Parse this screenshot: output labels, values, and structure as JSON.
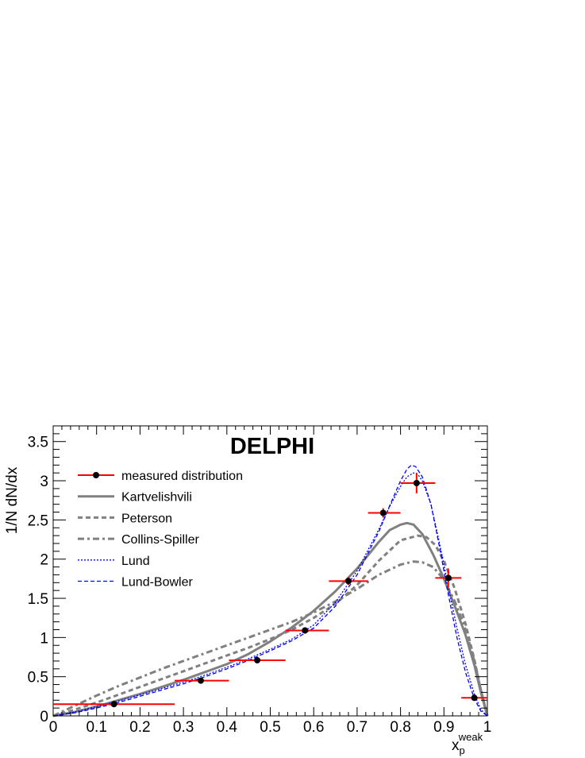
{
  "chart_data": {
    "type": "line",
    "title": "DELPHI",
    "xlabel": "x",
    "xlabel_sub": "p",
    "xlabel_sup": "weak",
    "ylabel": "1/N dN/dx",
    "xlim": [
      0,
      1
    ],
    "ylim": [
      0,
      3.7
    ],
    "x_ticks": [
      "0",
      "0.1",
      "0.2",
      "0.3",
      "0.4",
      "0.5",
      "0.6",
      "0.7",
      "0.8",
      "0.9",
      "1"
    ],
    "y_ticks": [
      "0",
      "0.5",
      "1",
      "1.5",
      "2",
      "2.5",
      "3",
      "3.5"
    ],
    "x_tick_values": [
      0,
      0.1,
      0.2,
      0.3,
      0.4,
      0.5,
      0.6,
      0.7,
      0.8,
      0.9,
      1.0
    ],
    "y_tick_values": [
      0,
      0.5,
      1.0,
      1.5,
      2.0,
      2.5,
      3.0,
      3.5
    ],
    "grid": false,
    "legend_position": "top-left",
    "measured": {
      "name": "measured distribution",
      "color": "#ff0000",
      "marker_color": "#000000",
      "points": [
        {
          "x": 0.14,
          "y": 0.15,
          "xlo": 0.0,
          "xhi": 0.28,
          "yerr": 0.02
        },
        {
          "x": 0.34,
          "y": 0.45,
          "xlo": 0.28,
          "xhi": 0.405,
          "yerr": 0.02
        },
        {
          "x": 0.47,
          "y": 0.71,
          "xlo": 0.405,
          "xhi": 0.535,
          "yerr": 0.03
        },
        {
          "x": 0.58,
          "y": 1.09,
          "xlo": 0.535,
          "xhi": 0.635,
          "yerr": 0.04
        },
        {
          "x": 0.68,
          "y": 1.72,
          "xlo": 0.635,
          "xhi": 0.725,
          "yerr": 0.05
        },
        {
          "x": 0.76,
          "y": 2.59,
          "xlo": 0.725,
          "xhi": 0.8,
          "yerr": 0.06
        },
        {
          "x": 0.837,
          "y": 2.97,
          "xlo": 0.8,
          "xhi": 0.88,
          "yerr": 0.13
        },
        {
          "x": 0.91,
          "y": 1.76,
          "xlo": 0.88,
          "xhi": 0.94,
          "yerr": 0.12
        },
        {
          "x": 0.97,
          "y": 0.23,
          "xlo": 0.94,
          "xhi": 1.0,
          "yerr": 0.03
        }
      ]
    },
    "series": [
      {
        "name": "Kartvelishvili",
        "color": "#808080",
        "style": "solid",
        "x": [
          0.0,
          0.05,
          0.1,
          0.15,
          0.2,
          0.25,
          0.3,
          0.35,
          0.4,
          0.45,
          0.5,
          0.55,
          0.6,
          0.65,
          0.7,
          0.725,
          0.75,
          0.775,
          0.8,
          0.815,
          0.83,
          0.85,
          0.875,
          0.9,
          0.925,
          0.95,
          0.97,
          0.985,
          1.0
        ],
        "values": [
          0.0,
          0.05,
          0.12,
          0.2,
          0.28,
          0.37,
          0.46,
          0.56,
          0.66,
          0.79,
          0.95,
          1.13,
          1.34,
          1.59,
          1.88,
          2.05,
          2.22,
          2.37,
          2.44,
          2.46,
          2.44,
          2.32,
          2.06,
          1.75,
          1.4,
          1.03,
          0.65,
          0.3,
          0.0
        ]
      },
      {
        "name": "Peterson",
        "color": "#808080",
        "style": "dashed",
        "x": [
          0.0,
          0.05,
          0.1,
          0.15,
          0.2,
          0.25,
          0.3,
          0.35,
          0.4,
          0.45,
          0.5,
          0.55,
          0.6,
          0.65,
          0.7,
          0.75,
          0.8,
          0.84,
          0.86,
          0.88,
          0.9,
          0.925,
          0.95,
          0.97,
          0.985,
          1.0
        ],
        "values": [
          0.0,
          0.08,
          0.17,
          0.27,
          0.37,
          0.47,
          0.57,
          0.67,
          0.77,
          0.87,
          0.98,
          1.1,
          1.25,
          1.43,
          1.67,
          1.98,
          2.24,
          2.3,
          2.28,
          2.18,
          1.98,
          1.62,
          1.17,
          0.72,
          0.33,
          0.0
        ]
      },
      {
        "name": "Collins-Spiller",
        "color": "#808080",
        "style": "dashdot",
        "x": [
          0.0,
          0.05,
          0.1,
          0.15,
          0.2,
          0.25,
          0.3,
          0.35,
          0.4,
          0.45,
          0.5,
          0.55,
          0.6,
          0.65,
          0.7,
          0.75,
          0.8,
          0.83,
          0.85,
          0.875,
          0.9,
          0.925,
          0.95,
          0.97,
          0.985,
          1.0
        ],
        "values": [
          0.0,
          0.13,
          0.26,
          0.38,
          0.49,
          0.6,
          0.7,
          0.8,
          0.9,
          1.0,
          1.1,
          1.2,
          1.32,
          1.46,
          1.62,
          1.8,
          1.93,
          1.97,
          1.96,
          1.9,
          1.74,
          1.46,
          1.1,
          0.7,
          0.33,
          0.0
        ]
      },
      {
        "name": "Lund",
        "color": "#0000ff",
        "style": "dotted",
        "x": [
          0.0,
          0.05,
          0.1,
          0.15,
          0.2,
          0.25,
          0.3,
          0.35,
          0.4,
          0.45,
          0.5,
          0.55,
          0.6,
          0.65,
          0.7,
          0.75,
          0.775,
          0.8,
          0.815,
          0.83,
          0.84,
          0.85,
          0.87,
          0.89,
          0.91,
          0.93,
          0.95,
          0.97,
          0.985,
          1.0
        ],
        "values": [
          0.0,
          0.05,
          0.12,
          0.19,
          0.27,
          0.35,
          0.43,
          0.52,
          0.62,
          0.73,
          0.85,
          0.98,
          1.16,
          1.45,
          1.85,
          2.38,
          2.67,
          2.93,
          3.05,
          3.1,
          3.08,
          3.0,
          2.7,
          2.2,
          1.65,
          1.12,
          0.65,
          0.28,
          0.08,
          0.0
        ]
      },
      {
        "name": "Lund-Bowler",
        "color": "#0000ff",
        "style": "dashed",
        "x": [
          0.0,
          0.05,
          0.1,
          0.15,
          0.2,
          0.25,
          0.3,
          0.35,
          0.4,
          0.45,
          0.5,
          0.55,
          0.6,
          0.65,
          0.7,
          0.75,
          0.775,
          0.8,
          0.815,
          0.825,
          0.835,
          0.85,
          0.87,
          0.89,
          0.91,
          0.93,
          0.95,
          0.97,
          0.985,
          1.0
        ],
        "values": [
          0.0,
          0.04,
          0.1,
          0.17,
          0.25,
          0.33,
          0.41,
          0.5,
          0.6,
          0.71,
          0.83,
          0.96,
          1.12,
          1.4,
          1.8,
          2.35,
          2.68,
          3.0,
          3.15,
          3.2,
          3.18,
          3.05,
          2.7,
          2.15,
          1.55,
          1.0,
          0.55,
          0.22,
          0.06,
          0.0
        ]
      }
    ]
  }
}
